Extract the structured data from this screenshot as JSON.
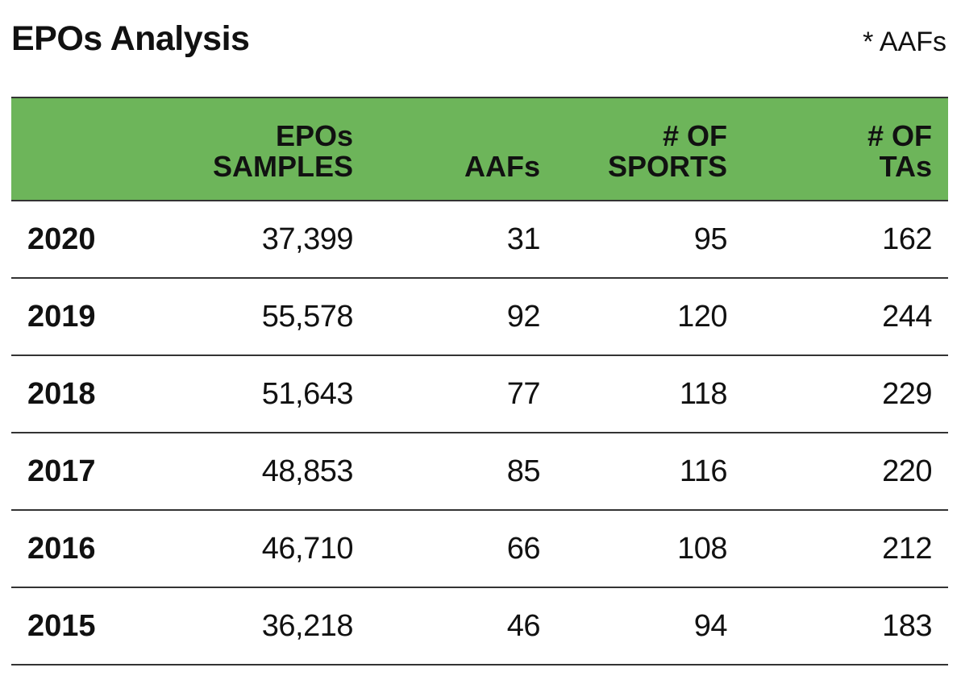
{
  "title": "EPOs Analysis",
  "footnote": "* AAFs",
  "colors": {
    "header_bg": "#6db55a",
    "rule": "#333333",
    "text": "#111111"
  },
  "chart_data": {
    "type": "table",
    "title": "EPOs Analysis",
    "columns": [
      {
        "key": "year",
        "label_lines": [
          ""
        ]
      },
      {
        "key": "epo_samples",
        "label_lines": [
          "EPOs",
          "SAMPLES"
        ]
      },
      {
        "key": "aafs",
        "label_lines": [
          "AAFs"
        ]
      },
      {
        "key": "sports",
        "label_lines": [
          "# OF",
          "SPORTS"
        ]
      },
      {
        "key": "tas",
        "label_lines": [
          "# OF",
          "TAs"
        ]
      }
    ],
    "rows": [
      {
        "year": "2020",
        "epo_samples": "37,399",
        "aafs": "31",
        "sports": "95",
        "tas": "162"
      },
      {
        "year": "2019",
        "epo_samples": "55,578",
        "aafs": "92",
        "sports": "120",
        "tas": "244"
      },
      {
        "year": "2018",
        "epo_samples": "51,643",
        "aafs": "77",
        "sports": "118",
        "tas": "229"
      },
      {
        "year": "2017",
        "epo_samples": "48,853",
        "aafs": "85",
        "sports": "116",
        "tas": "220"
      },
      {
        "year": "2016",
        "epo_samples": "46,710",
        "aafs": "66",
        "sports": "108",
        "tas": "212"
      },
      {
        "year": "2015",
        "epo_samples": "36,218",
        "aafs": "46",
        "sports": "94",
        "tas": "183"
      }
    ]
  }
}
